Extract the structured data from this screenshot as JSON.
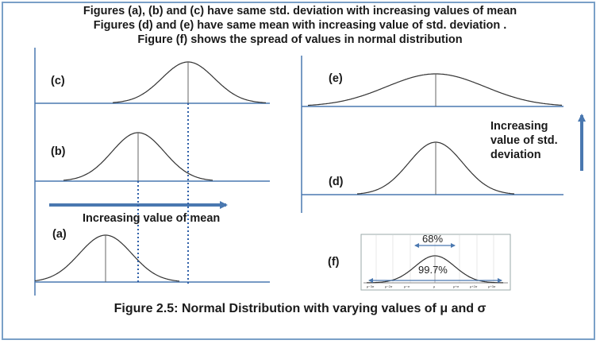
{
  "header": {
    "line1": "Figures (a), (b)  and (c) have same std. deviation with increasing values of mean",
    "line2": "Figures (d) and (e) have same mean with increasing value of std. deviation .",
    "line3": "Figure (f) shows the spread of values in normal distribution"
  },
  "panels": {
    "a": "(a)",
    "b": "(b)",
    "c": "(c)",
    "d": "(d)",
    "e": "(e)",
    "f": "(f)"
  },
  "labels": {
    "mean_arrow": "Increasing value of mean",
    "std_arrow_1": "Increasing",
    "std_arrow_2": "value of std.",
    "std_arrow_3": "deviation",
    "pct_68": "68%",
    "pct_997": "99.7%"
  },
  "f_ticks": [
    "μ−3σ",
    "μ−2σ",
    "μ−σ",
    "μ",
    "μ+σ",
    "μ+2σ",
    "μ+3σ"
  ],
  "caption": "Figure 2.5: Normal Distribution with varying values of μ and σ",
  "colors": {
    "axis": "#4a78b0",
    "curve": "#333333",
    "arrow": "#4a78b0",
    "dotted": "#2e5fa8",
    "frame": "#7aa0c7"
  }
}
